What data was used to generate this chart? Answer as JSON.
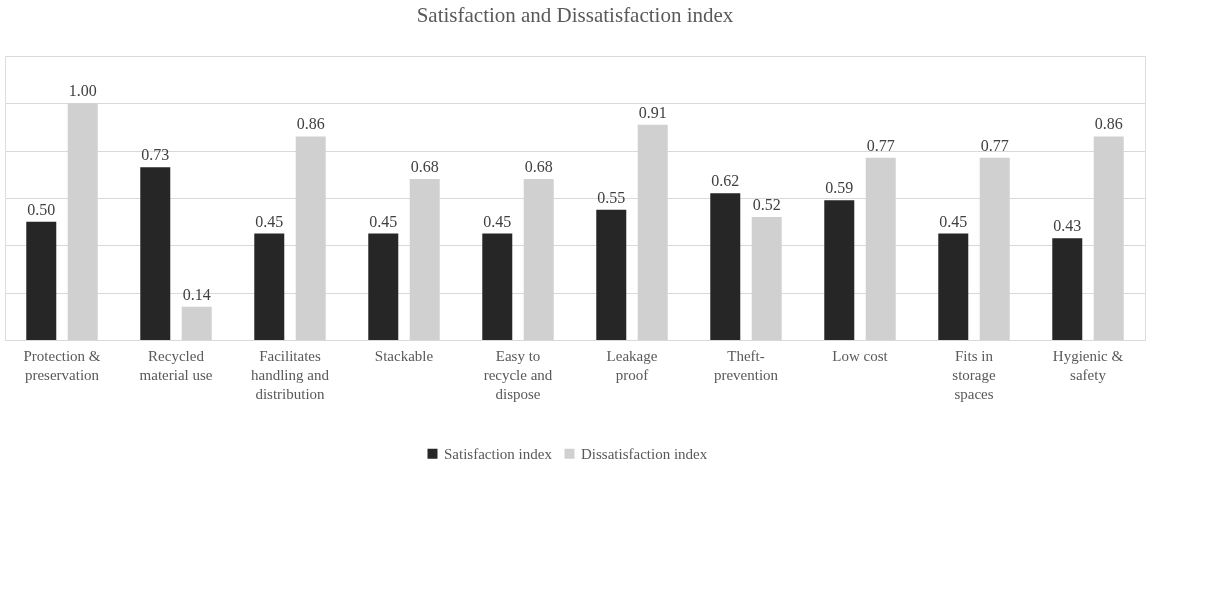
{
  "chart_data": {
    "type": "bar",
    "title": "Satisfaction and Dissatisfaction index",
    "categories": [
      "Protection & preservation",
      "Recycled material use",
      "Facilitates handling and distribution",
      "Stackable",
      "Easy to recycle and dispose",
      "Leakage proof",
      "Theft-prevention",
      "Low cost",
      "Fits in storage spaces",
      "Hygienic & safety"
    ],
    "series": [
      {
        "name": "Satisfaction index",
        "color": "#262626",
        "values": [
          0.5,
          0.73,
          0.45,
          0.45,
          0.45,
          0.55,
          0.62,
          0.59,
          0.45,
          0.43
        ],
        "value_labels": [
          "0.50",
          "0.73",
          "0.45",
          "0.45",
          "0.45",
          "0.55",
          "0.62",
          "0.59",
          "0.45",
          "0.43"
        ]
      },
      {
        "name": "Dissatisfaction index",
        "color": "#d0d0d0",
        "values": [
          1.0,
          0.14,
          0.86,
          0.68,
          0.68,
          0.91,
          0.52,
          0.77,
          0.77,
          0.86
        ],
        "value_labels": [
          "1.00",
          "0.14",
          "0.86",
          "0.68",
          "0.68",
          "0.91",
          "0.52",
          "0.77",
          "0.77",
          "0.86"
        ]
      }
    ],
    "ylim": [
      0,
      1.2
    ],
    "yticks": [
      {
        "value": 0,
        "label": null
      },
      {
        "value": 0.2,
        "label": null
      },
      {
        "value": 0.4,
        "label": null
      },
      {
        "value": 0.6,
        "label": null
      },
      {
        "value": 0.8,
        "label": null
      },
      {
        "value": 1.0,
        "label": null
      },
      {
        "value": 1.2,
        "label": null
      }
    ],
    "tick_labels": "x",
    "grid": "y",
    "legend": "bottom"
  }
}
